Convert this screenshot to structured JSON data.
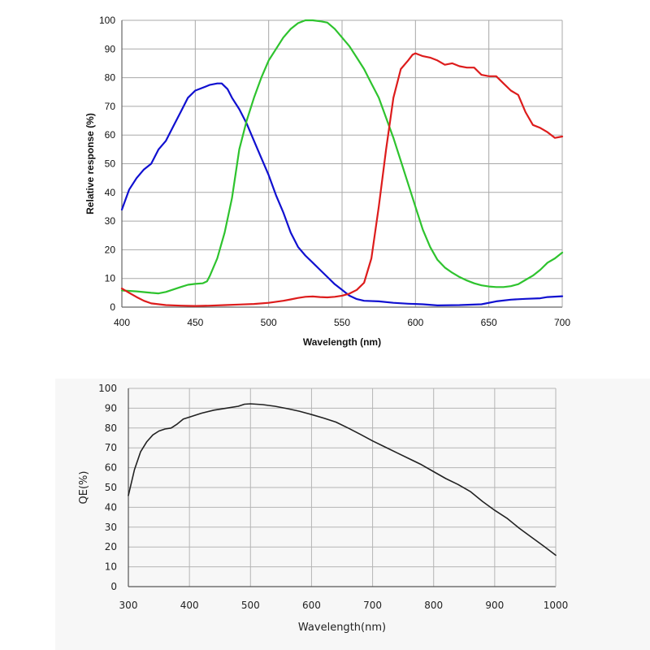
{
  "chart_data": [
    {
      "type": "line",
      "xlabel": "Wavelength (nm)",
      "ylabel": "Relative response (%)",
      "xlim": [
        400,
        700
      ],
      "ylim": [
        0,
        100
      ],
      "xticks": [
        "400",
        "450",
        "500",
        "550",
        "600",
        "650",
        "700"
      ],
      "yticks": [
        "0",
        "10",
        "20",
        "30",
        "40",
        "50",
        "60",
        "70",
        "80",
        "90",
        "100"
      ],
      "grid": true,
      "series": [
        {
          "color": "#1010d0",
          "points": [
            [
              400,
              34
            ],
            [
              405,
              41
            ],
            [
              410,
              45
            ],
            [
              415,
              48
            ],
            [
              420,
              50
            ],
            [
              425,
              55
            ],
            [
              430,
              58
            ],
            [
              435,
              63
            ],
            [
              440,
              68
            ],
            [
              445,
              73
            ],
            [
              450,
              75.5
            ],
            [
              455,
              76.5
            ],
            [
              460,
              77.5
            ],
            [
              465,
              78
            ],
            [
              468,
              78
            ],
            [
              472,
              76
            ],
            [
              475,
              73
            ],
            [
              480,
              69
            ],
            [
              485,
              64
            ],
            [
              490,
              58
            ],
            [
              495,
              52
            ],
            [
              500,
              46
            ],
            [
              505,
              39
            ],
            [
              510,
              33
            ],
            [
              515,
              26
            ],
            [
              520,
              21
            ],
            [
              525,
              18
            ],
            [
              530,
              15.5
            ],
            [
              535,
              13
            ],
            [
              540,
              10.5
            ],
            [
              545,
              8
            ],
            [
              550,
              6
            ],
            [
              555,
              4
            ],
            [
              560,
              2.8
            ],
            [
              565,
              2.2
            ],
            [
              575,
              2.0
            ],
            [
              585,
              1.5
            ],
            [
              595,
              1.2
            ],
            [
              605,
              1.0
            ],
            [
              615,
              0.6
            ],
            [
              630,
              0.7
            ],
            [
              645,
              1.0
            ],
            [
              655,
              2.0
            ],
            [
              665,
              2.6
            ],
            [
              675,
              2.9
            ],
            [
              685,
              3.1
            ],
            [
              690,
              3.5
            ],
            [
              700,
              3.8
            ]
          ]
        },
        {
          "color": "#2ec32e",
          "points": [
            [
              400,
              5.8
            ],
            [
              410,
              5.5
            ],
            [
              420,
              5.0
            ],
            [
              425,
              4.8
            ],
            [
              430,
              5.3
            ],
            [
              440,
              7.0
            ],
            [
              445,
              7.8
            ],
            [
              450,
              8.1
            ],
            [
              455,
              8.3
            ],
            [
              458,
              9.0
            ],
            [
              460,
              11
            ],
            [
              465,
              17
            ],
            [
              470,
              26
            ],
            [
              475,
              38
            ],
            [
              480,
              55
            ],
            [
              485,
              65
            ],
            [
              490,
              73
            ],
            [
              495,
              80
            ],
            [
              500,
              86
            ],
            [
              505,
              90
            ],
            [
              510,
              94
            ],
            [
              515,
              97
            ],
            [
              520,
              99
            ],
            [
              525,
              100
            ],
            [
              530,
              100
            ],
            [
              535,
              99.7
            ],
            [
              540,
              99.2
            ],
            [
              545,
              97
            ],
            [
              550,
              94
            ],
            [
              555,
              91
            ],
            [
              560,
              87
            ],
            [
              565,
              83
            ],
            [
              570,
              78
            ],
            [
              575,
              73
            ],
            [
              580,
              66
            ],
            [
              585,
              59
            ],
            [
              590,
              51
            ],
            [
              595,
              43
            ],
            [
              600,
              35
            ],
            [
              605,
              27
            ],
            [
              610,
              21
            ],
            [
              615,
              16.5
            ],
            [
              620,
              13.8
            ],
            [
              625,
              12
            ],
            [
              630,
              10.5
            ],
            [
              635,
              9.3
            ],
            [
              640,
              8.3
            ],
            [
              645,
              7.6
            ],
            [
              650,
              7.2
            ],
            [
              655,
              7.0
            ],
            [
              660,
              7.0
            ],
            [
              665,
              7.3
            ],
            [
              670,
              8.0
            ],
            [
              675,
              9.5
            ],
            [
              680,
              11
            ],
            [
              685,
              13
            ],
            [
              690,
              15.5
            ],
            [
              695,
              17
            ],
            [
              700,
              19
            ]
          ]
        },
        {
          "color": "#dd1c1c",
          "points": [
            [
              400,
              6.5
            ],
            [
              405,
              5
            ],
            [
              410,
              3.5
            ],
            [
              415,
              2.2
            ],
            [
              420,
              1.3
            ],
            [
              430,
              0.7
            ],
            [
              440,
              0.5
            ],
            [
              450,
              0.4
            ],
            [
              460,
              0.5
            ],
            [
              470,
              0.7
            ],
            [
              480,
              0.9
            ],
            [
              490,
              1.1
            ],
            [
              500,
              1.5
            ],
            [
              510,
              2.2
            ],
            [
              515,
              2.7
            ],
            [
              520,
              3.2
            ],
            [
              525,
              3.6
            ],
            [
              530,
              3.7
            ],
            [
              535,
              3.5
            ],
            [
              540,
              3.4
            ],
            [
              545,
              3.6
            ],
            [
              550,
              4.0
            ],
            [
              555,
              4.7
            ],
            [
              560,
              6
            ],
            [
              565,
              8.5
            ],
            [
              570,
              17
            ],
            [
              575,
              35
            ],
            [
              580,
              55
            ],
            [
              585,
              73
            ],
            [
              590,
              83
            ],
            [
              595,
              86
            ],
            [
              598,
              88
            ],
            [
              600,
              88.5
            ],
            [
              605,
              87.5
            ],
            [
              610,
              87
            ],
            [
              615,
              86
            ],
            [
              620,
              84.5
            ],
            [
              625,
              85
            ],
            [
              630,
              84
            ],
            [
              635,
              83.5
            ],
            [
              640,
              83.5
            ],
            [
              645,
              81
            ],
            [
              650,
              80.5
            ],
            [
              655,
              80.5
            ],
            [
              660,
              78
            ],
            [
              665,
              75.5
            ],
            [
              670,
              74
            ],
            [
              675,
              68
            ],
            [
              680,
              63.5
            ],
            [
              685,
              62.5
            ],
            [
              690,
              61
            ],
            [
              695,
              59
            ],
            [
              700,
              59.5
            ]
          ]
        }
      ]
    },
    {
      "type": "line",
      "xlabel": "Wavelength(nm)",
      "ylabel": "QE(%)",
      "xlim": [
        300,
        1000
      ],
      "ylim": [
        0,
        100
      ],
      "xticks": [
        "300",
        "400",
        "500",
        "600",
        "700",
        "800",
        "900",
        "1000"
      ],
      "yticks": [
        "0",
        "10",
        "20",
        "30",
        "40",
        "50",
        "60",
        "70",
        "80",
        "90",
        "100"
      ],
      "grid": true,
      "series": [
        {
          "color": "#222222",
          "points": [
            [
              300,
              46
            ],
            [
              310,
              59
            ],
            [
              320,
              68
            ],
            [
              330,
              73
            ],
            [
              340,
              76.5
            ],
            [
              350,
              78.5
            ],
            [
              360,
              79.5
            ],
            [
              370,
              80
            ],
            [
              380,
              82
            ],
            [
              390,
              84.5
            ],
            [
              400,
              85.5
            ],
            [
              420,
              87.5
            ],
            [
              440,
              89
            ],
            [
              460,
              90
            ],
            [
              480,
              91
            ],
            [
              490,
              92
            ],
            [
              500,
              92.2
            ],
            [
              520,
              91.8
            ],
            [
              540,
              91
            ],
            [
              560,
              89.8
            ],
            [
              580,
              88.5
            ],
            [
              600,
              86.8
            ],
            [
              620,
              85
            ],
            [
              640,
              83
            ],
            [
              660,
              80
            ],
            [
              680,
              76.8
            ],
            [
              700,
              73.5
            ],
            [
              720,
              70.5
            ],
            [
              740,
              67.5
            ],
            [
              760,
              64.5
            ],
            [
              780,
              61.5
            ],
            [
              800,
              58
            ],
            [
              820,
              54.5
            ],
            [
              840,
              51.5
            ],
            [
              860,
              48
            ],
            [
              880,
              43
            ],
            [
              900,
              38.5
            ],
            [
              920,
              34.5
            ],
            [
              940,
              29.5
            ],
            [
              960,
              25
            ],
            [
              980,
              20.5
            ],
            [
              1000,
              15.8
            ]
          ]
        }
      ]
    }
  ]
}
